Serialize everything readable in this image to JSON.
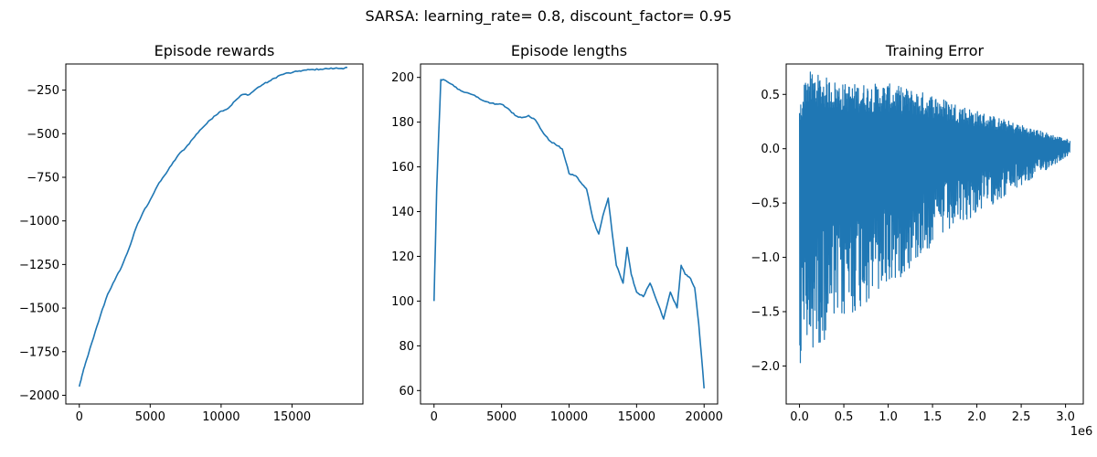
{
  "figure": {
    "suptitle": "SARSA: learning_rate= 0.8, discount_factor= 0.95"
  },
  "colors": {
    "line": "#1f77b4",
    "axes": "#000000",
    "background": "#ffffff"
  },
  "chart_data": [
    {
      "type": "line",
      "title": "Episode rewards",
      "xlabel": "",
      "ylabel": "",
      "xlim": [
        -950,
        20000
      ],
      "ylim": [
        -2050,
        -100
      ],
      "xticks": [
        0,
        5000,
        10000,
        15000
      ],
      "xtick_labels": [
        "0",
        "5000",
        "10000",
        "15000"
      ],
      "yticks": [
        -2000,
        -1750,
        -1500,
        -1250,
        -1000,
        -750,
        -500,
        -250
      ],
      "ytick_labels": [
        "−2000",
        "−1750",
        "−1500",
        "−1250",
        "−1000",
        "−750",
        "−500",
        "−250"
      ],
      "grid": false,
      "series": [
        {
          "x": [
            0,
            250,
            500,
            1000,
            1500,
            2000,
            2500,
            3000,
            3500,
            4000,
            4500,
            5000,
            5500,
            6000,
            6500,
            7000,
            7500,
            8000,
            8500,
            9000,
            9500,
            10000,
            10500,
            11000,
            11500,
            12000,
            12500,
            13000,
            13500,
            14000,
            14500,
            15000,
            15500,
            16000,
            16500,
            17000,
            17500,
            18000,
            18500,
            18900
          ],
          "y": [
            -1950,
            -1870,
            -1800,
            -1670,
            -1540,
            -1420,
            -1340,
            -1260,
            -1160,
            -1040,
            -950,
            -880,
            -800,
            -740,
            -680,
            -620,
            -580,
            -530,
            -480,
            -440,
            -400,
            -370,
            -355,
            -310,
            -275,
            -275,
            -240,
            -215,
            -195,
            -170,
            -155,
            -150,
            -140,
            -135,
            -132,
            -130,
            -127,
            -125,
            -125,
            -120
          ]
        }
      ]
    },
    {
      "type": "line",
      "title": "Episode lengths",
      "xlabel": "",
      "ylabel": "",
      "xlim": [
        -1000,
        21000
      ],
      "ylim": [
        54,
        206
      ],
      "xticks": [
        0,
        5000,
        10000,
        15000,
        20000
      ],
      "xtick_labels": [
        "0",
        "5000",
        "10000",
        "15000",
        "20000"
      ],
      "yticks": [
        60,
        80,
        100,
        120,
        140,
        160,
        180,
        200
      ],
      "ytick_labels": [
        "60",
        "80",
        "100",
        "120",
        "140",
        "160",
        "180",
        "200"
      ],
      "grid": false,
      "series": [
        {
          "x": [
            0,
            200,
            500,
            700,
            1000,
            1500,
            2000,
            3000,
            3500,
            4000,
            4500,
            5000,
            5500,
            6000,
            6500,
            7000,
            7500,
            8000,
            8500,
            9000,
            9500,
            10000,
            10500,
            11000,
            11300,
            11800,
            12200,
            12500,
            12900,
            13200,
            13500,
            14000,
            14300,
            14600,
            15000,
            15500,
            16000,
            16500,
            17000,
            17500,
            18000,
            18300,
            18600,
            19000,
            19300,
            19600,
            20000
          ],
          "y": [
            100,
            150,
            199,
            199,
            198,
            196,
            194,
            192,
            190,
            189,
            188,
            188,
            186,
            183,
            182,
            183,
            181,
            176,
            172,
            170,
            168,
            157,
            156,
            152,
            150,
            136,
            130,
            138,
            146,
            130,
            116,
            108,
            124,
            112,
            104,
            102,
            108,
            100,
            92,
            104,
            97,
            116,
            112,
            110,
            106,
            90,
            61
          ]
        }
      ]
    },
    {
      "type": "line",
      "title": "Training Error",
      "xlabel": "",
      "ylabel": "",
      "xlim": [
        -0.15,
        3.2
      ],
      "ylim": [
        -2.35,
        0.78
      ],
      "xticks": [
        0.0,
        0.5,
        1.0,
        1.5,
        2.0,
        2.5,
        3.0
      ],
      "xtick_labels": [
        "0.0",
        "0.5",
        "1.0",
        "1.5",
        "2.0",
        "2.5",
        "3.0"
      ],
      "yticks": [
        -2.0,
        -1.5,
        -1.0,
        -0.5,
        0.0,
        0.5
      ],
      "ytick_labels": [
        "−2.0",
        "−1.5",
        "−1.0",
        "−0.5",
        "0.0",
        "0.5"
      ],
      "x_offset_label": "1e6",
      "grid": false,
      "series": [
        {
          "x_range": [
            0,
            3.05
          ],
          "upper_envelope": [
            {
              "x": 0.0,
              "y": 0.38
            },
            {
              "x": 0.08,
              "y": 0.72
            },
            {
              "x": 0.5,
              "y": 0.6
            },
            {
              "x": 1.0,
              "y": 0.6
            },
            {
              "x": 1.5,
              "y": 0.5
            },
            {
              "x": 2.0,
              "y": 0.35
            },
            {
              "x": 2.5,
              "y": 0.22
            },
            {
              "x": 3.05,
              "y": 0.08
            }
          ],
          "lower_envelope": [
            {
              "x": 0.0,
              "y": -2.25
            },
            {
              "x": 0.1,
              "y": -1.9
            },
            {
              "x": 0.5,
              "y": -1.6
            },
            {
              "x": 1.0,
              "y": -1.3
            },
            {
              "x": 1.5,
              "y": -0.9
            },
            {
              "x": 2.0,
              "y": -0.6
            },
            {
              "x": 2.5,
              "y": -0.35
            },
            {
              "x": 3.05,
              "y": -0.05
            }
          ]
        }
      ]
    }
  ]
}
